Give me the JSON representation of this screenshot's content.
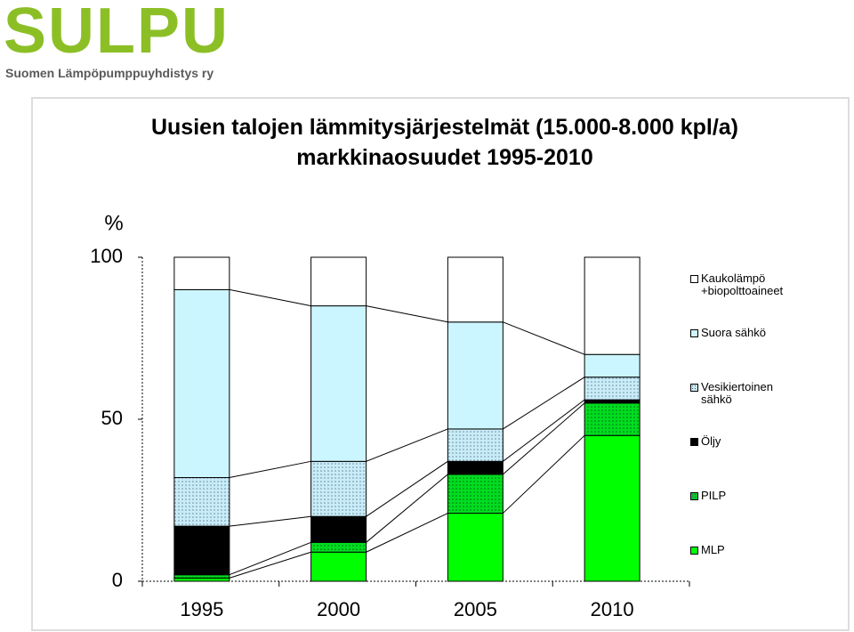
{
  "logo": {
    "name": "SULPU",
    "subtitle": "Suomen Lämpöpumppuyhdistys ry"
  },
  "chart_data": {
    "type": "stacked_bar",
    "title": "Uusien talojen lämmitysjärjestelmät (15.000-8.000 kpl/a) markkinaosuudet 1995-2010",
    "ylabel": "%",
    "categories": [
      "1995",
      "2000",
      "2005",
      "2010"
    ],
    "series": [
      {
        "name": "MLP",
        "color": "#00ff00",
        "values": [
          1,
          9,
          21,
          45
        ]
      },
      {
        "name": "PILP",
        "color": "#00c832",
        "values": [
          1,
          3,
          12,
          10
        ]
      },
      {
        "name": "Öljy",
        "color": "#000000",
        "values": [
          15,
          8,
          4,
          1
        ]
      },
      {
        "name": "Vesikiertoinen sähkö",
        "color": "#c8ecf8",
        "values": [
          15,
          17,
          10,
          7
        ]
      },
      {
        "name": "Suora sähkö",
        "color": "#ccf6ff",
        "values": [
          58,
          48,
          33,
          7
        ]
      },
      {
        "name": "Kaukolämpö +biopolttoaineet",
        "color": "#ffffff",
        "values": [
          10,
          15,
          20,
          30
        ]
      }
    ],
    "ylim": [
      0,
      100
    ],
    "yticks": [
      0,
      50,
      100
    ],
    "legend": "right"
  }
}
